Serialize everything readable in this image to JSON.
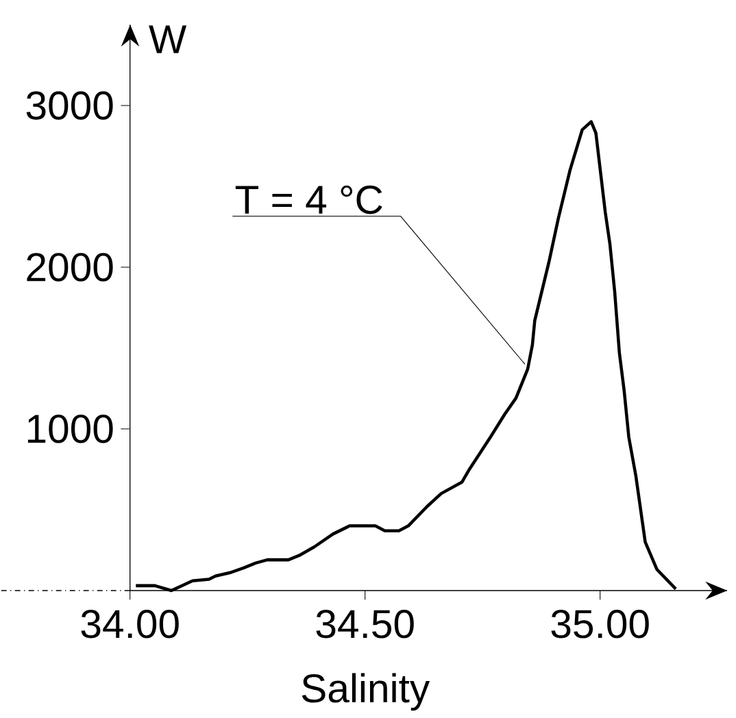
{
  "chart_data": {
    "type": "line",
    "xlabel": "Salinity",
    "ylabel": "W",
    "xlim": [
      34,
      35.27
    ],
    "ylim": [
      0,
      3500
    ],
    "xticks": [
      {
        "value": 34,
        "label": "34.00"
      },
      {
        "value": 34.5,
        "label": "34.50"
      },
      {
        "value": 35,
        "label": "35.00"
      }
    ],
    "yticks": [
      1000,
      2000,
      3000
    ],
    "grid": false,
    "marker": "none",
    "line_style": "solid",
    "annotations": [
      {
        "text": "T = 4 °C",
        "x": 34.84,
        "y": 1400
      }
    ],
    "series": [
      {
        "color": "#000000",
        "x": [
          34.0125,
          34.053,
          34.088,
          34.133,
          34.168,
          34.182,
          34.212,
          34.242,
          34.267,
          34.292,
          34.337,
          34.362,
          34.392,
          34.432,
          34.467,
          34.522,
          34.542,
          34.572,
          34.592,
          34.632,
          34.662,
          34.706,
          34.722,
          34.767,
          34.797,
          34.821,
          34.846,
          34.856,
          34.861,
          34.891,
          34.911,
          34.936,
          34.962,
          34.981,
          34.991,
          35.011,
          35.021,
          35.031,
          35.041,
          35.051,
          35.061,
          35.076,
          35.096,
          35.121,
          35.161
        ],
        "values": [
          30,
          30,
          0,
          60,
          70,
          90,
          110,
          140,
          170,
          190,
          190,
          220,
          270,
          350,
          400,
          400,
          370,
          370,
          400,
          520,
          600,
          670,
          750,
          950,
          1090,
          1190,
          1370,
          1520,
          1670,
          2030,
          2300,
          2600,
          2850,
          2900,
          2830,
          2340,
          2140,
          1850,
          1470,
          1240,
          950,
          710,
          300,
          130,
          10
        ]
      }
    ]
  }
}
